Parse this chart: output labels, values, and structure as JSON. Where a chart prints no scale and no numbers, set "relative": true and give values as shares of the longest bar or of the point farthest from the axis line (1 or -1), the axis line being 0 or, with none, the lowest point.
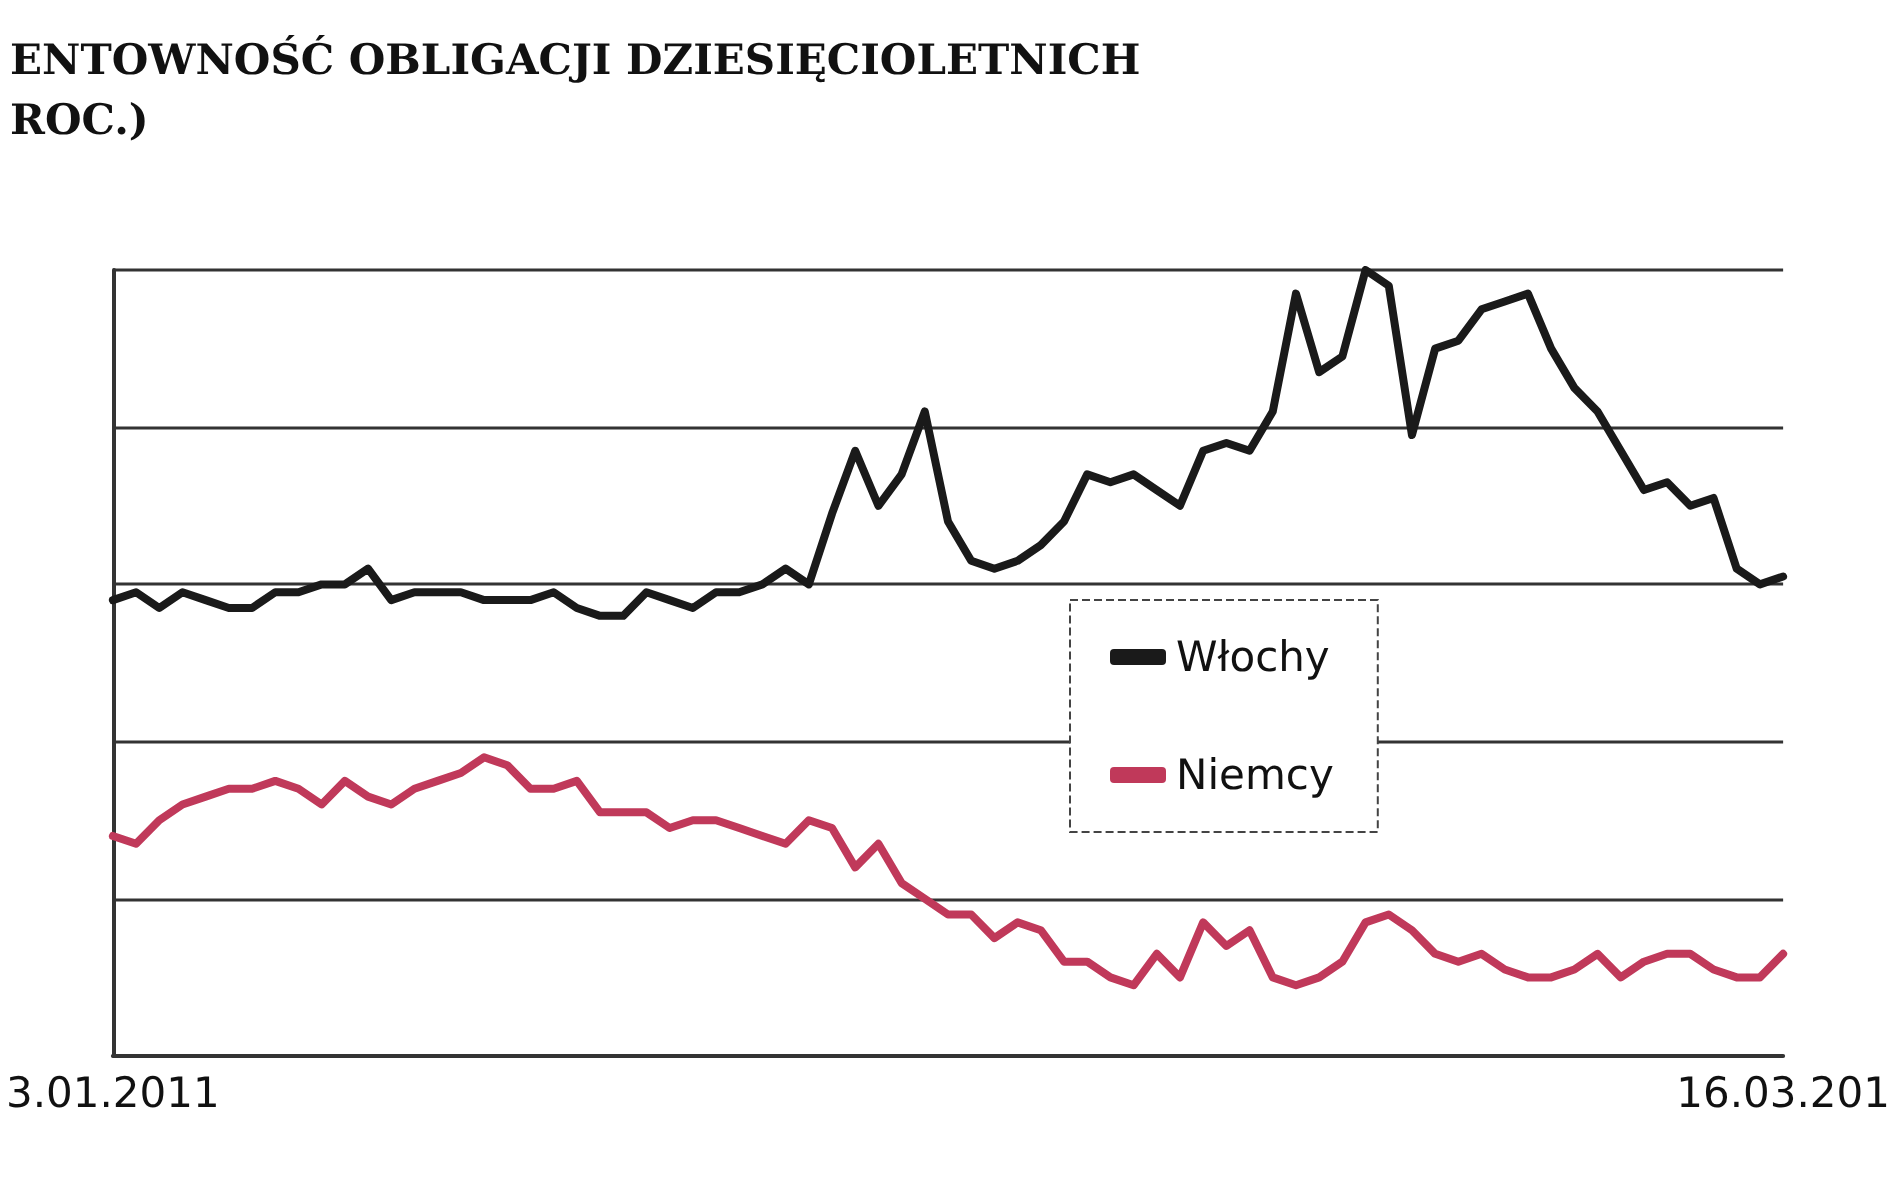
{
  "chart_data": {
    "type": "line",
    "title": "ENTOWNOŚĆ OBLIGACJI DZIESIĘCIOLETNICH",
    "subtitle": "ROC.)",
    "relative": true,
    "grid": "y",
    "legend": "center",
    "marker": "none",
    "line_style": "solid",
    "categories": [
      "3.01.2011",
      null,
      null,
      null,
      null,
      null,
      null,
      null,
      null,
      null,
      null,
      null,
      null,
      null,
      null,
      null,
      null,
      null,
      null,
      null,
      null,
      null,
      null,
      null,
      null,
      null,
      null,
      null,
      null,
      null,
      null,
      null,
      null,
      null,
      null,
      null,
      null,
      null,
      null,
      null,
      null,
      null,
      null,
      null,
      null,
      null,
      null,
      null,
      null,
      null,
      null,
      null,
      null,
      null,
      null,
      null,
      null,
      null,
      null,
      null,
      null,
      null,
      null,
      null,
      null,
      null,
      null,
      null,
      null,
      null,
      null,
      null,
      "16.03.201"
    ],
    "series": [
      {
        "name": "Włochy",
        "color": "#1a1a1a",
        "values": [
          0.58,
          0.59,
          0.57,
          0.59,
          0.58,
          0.57,
          0.57,
          0.59,
          0.59,
          0.6,
          0.6,
          0.62,
          0.58,
          0.59,
          0.59,
          0.59,
          0.58,
          0.58,
          0.58,
          0.59,
          0.57,
          0.56,
          0.56,
          0.59,
          0.58,
          0.57,
          0.59,
          0.59,
          0.6,
          0.62,
          0.6,
          0.69,
          0.77,
          0.7,
          0.74,
          0.82,
          0.68,
          0.63,
          0.62,
          0.63,
          0.65,
          0.68,
          0.74,
          0.73,
          0.74,
          0.72,
          0.7,
          0.77,
          0.78,
          0.77,
          0.82,
          0.97,
          0.87,
          0.89,
          1.0,
          0.98,
          0.79,
          0.9,
          0.91,
          0.95,
          0.96,
          0.97,
          0.9,
          0.85,
          0.82,
          0.77,
          0.72,
          0.73,
          0.7,
          0.71,
          0.62,
          0.6,
          0.61
        ]
      },
      {
        "name": "Niemcy",
        "color": "#c0395a",
        "values": [
          0.28,
          0.27,
          0.3,
          0.32,
          0.33,
          0.34,
          0.34,
          0.35,
          0.34,
          0.32,
          0.35,
          0.33,
          0.32,
          0.34,
          0.35,
          0.36,
          0.38,
          0.37,
          0.34,
          0.34,
          0.35,
          0.31,
          0.31,
          0.31,
          0.29,
          0.3,
          0.3,
          0.29,
          0.28,
          0.27,
          0.3,
          0.29,
          0.24,
          0.27,
          0.22,
          0.2,
          0.18,
          0.18,
          0.15,
          0.17,
          0.16,
          0.12,
          0.12,
          0.1,
          0.09,
          0.13,
          0.1,
          0.17,
          0.14,
          0.16,
          0.1,
          0.09,
          0.1,
          0.12,
          0.17,
          0.18,
          0.16,
          0.13,
          0.12,
          0.13,
          0.11,
          0.1,
          0.1,
          0.11,
          0.13,
          0.1,
          0.12,
          0.13,
          0.13,
          0.11,
          0.1,
          0.1,
          0.13
        ]
      }
    ]
  }
}
